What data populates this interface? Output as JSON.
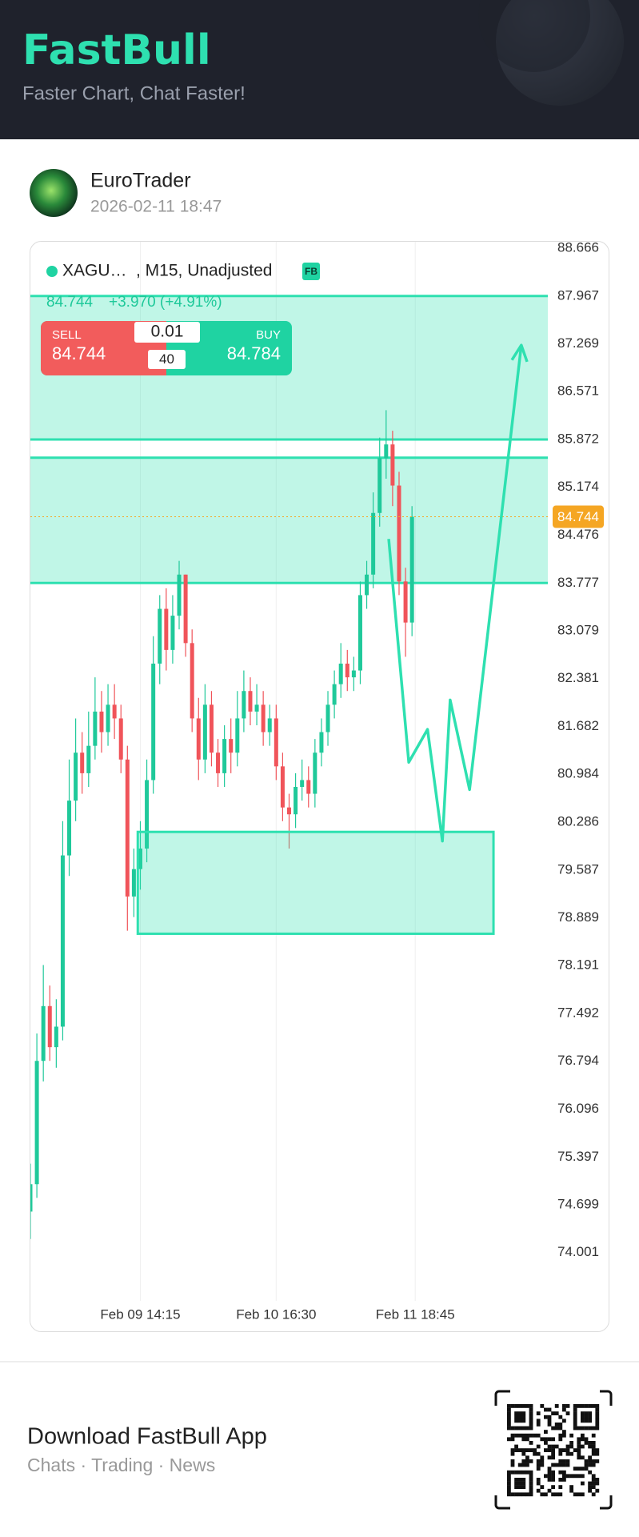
{
  "header": {
    "title": "FastBull",
    "subtitle": "Faster Chart, Chat Faster!"
  },
  "post": {
    "author": "EuroTrader",
    "timestamp": "2026-02-11 18:47"
  },
  "chart": {
    "type": "candlestick",
    "symbol": "XAGU…",
    "info": ", M15, Unadjusted",
    "badge": "FB",
    "quote": {
      "last": "84.744",
      "change": "+3.970 (+4.91%)",
      "sell_label": "SELL",
      "sell": "84.744",
      "buy_label": "BUY",
      "buy": "84.784",
      "lot": "0.01",
      "spread": "40"
    },
    "up_color": "#1fc99a",
    "down_color": "#f0545a",
    "open": [
      74.6,
      75.0,
      76.8,
      77.6,
      77.0,
      77.3,
      79.8,
      80.6,
      81.3,
      81.0,
      81.4,
      81.9,
      81.6,
      82.0,
      81.8,
      81.2,
      79.2,
      79.6,
      79.9,
      80.9,
      82.6,
      83.4,
      82.8,
      83.3,
      83.9,
      82.9,
      81.8,
      81.2,
      82.0,
      81.3,
      81.0,
      81.5,
      81.3,
      81.8,
      82.2,
      81.9,
      82.0,
      81.6,
      81.8,
      81.1,
      80.5,
      80.4,
      80.8,
      80.9,
      80.7,
      81.3,
      81.6,
      82.0,
      82.3,
      82.6,
      82.4,
      82.5,
      83.6,
      83.9,
      84.8,
      85.6,
      85.8,
      85.2,
      83.8,
      83.2
    ],
    "high": [
      75.3,
      77.2,
      78.2,
      77.9,
      77.7,
      80.3,
      81.2,
      81.8,
      81.6,
      81.9,
      82.4,
      82.2,
      82.3,
      82.3,
      82.0,
      81.4,
      79.9,
      80.3,
      81.2,
      83.0,
      83.6,
      83.7,
      83.6,
      84.1,
      83.9,
      83.1,
      82.1,
      82.3,
      82.2,
      81.5,
      81.7,
      81.8,
      82.2,
      82.5,
      82.4,
      82.3,
      82.2,
      82.0,
      82.0,
      81.3,
      80.7,
      81.0,
      81.2,
      81.1,
      81.5,
      81.8,
      82.2,
      82.5,
      82.9,
      82.8,
      82.7,
      83.8,
      84.1,
      85.1,
      85.9,
      86.3,
      86.0,
      85.4,
      84.0,
      84.9
    ],
    "low": [
      74.2,
      74.8,
      76.5,
      76.8,
      76.7,
      77.1,
      79.5,
      80.3,
      80.7,
      80.8,
      81.2,
      81.3,
      81.4,
      81.5,
      81.0,
      78.7,
      78.9,
      79.3,
      79.7,
      80.7,
      82.3,
      82.5,
      82.6,
      83.1,
      82.7,
      81.6,
      80.9,
      81.0,
      81.1,
      80.8,
      80.8,
      81.0,
      81.1,
      81.6,
      81.7,
      81.7,
      81.4,
      81.4,
      80.9,
      80.3,
      79.9,
      80.2,
      80.6,
      80.5,
      80.5,
      81.1,
      81.4,
      81.8,
      82.1,
      82.2,
      82.2,
      82.3,
      83.4,
      83.7,
      84.6,
      85.3,
      84.9,
      83.6,
      82.7,
      83.0
    ],
    "close": [
      75.0,
      76.8,
      77.6,
      77.0,
      77.3,
      79.8,
      80.6,
      81.3,
      81.0,
      81.4,
      81.9,
      81.6,
      82.0,
      81.8,
      81.2,
      79.2,
      79.6,
      79.9,
      80.9,
      82.6,
      83.4,
      82.8,
      83.3,
      83.9,
      82.9,
      81.8,
      81.2,
      82.0,
      81.3,
      81.0,
      81.5,
      81.3,
      81.8,
      82.2,
      81.9,
      82.0,
      81.6,
      81.8,
      81.1,
      80.5,
      80.4,
      80.8,
      80.9,
      80.7,
      81.3,
      81.6,
      82.0,
      82.3,
      82.6,
      82.4,
      82.5,
      83.6,
      83.9,
      84.8,
      85.6,
      85.8,
      85.2,
      83.8,
      83.2,
      84.744
    ],
    "xlim": [
      0,
      80
    ],
    "xticks": [
      {
        "value": 17,
        "label": "Feb 09 14:15"
      },
      {
        "value": 38,
        "label": "Feb 10 16:30"
      },
      {
        "value": 59.5,
        "label": "Feb 11 18:45"
      }
    ],
    "ylim": [
      73.355,
      88.771
    ],
    "yticks": [
      88.666,
      87.967,
      87.269,
      86.571,
      85.872,
      85.174,
      84.476,
      83.777,
      83.079,
      82.381,
      81.682,
      80.984,
      80.286,
      79.587,
      78.889,
      78.191,
      77.492,
      76.794,
      76.096,
      75.397,
      74.699,
      74.001
    ],
    "grid": true,
    "zones": [
      {
        "top": 87.967,
        "bottom": 85.872
      },
      {
        "top": 85.606,
        "bottom": 83.777
      }
    ],
    "box": {
      "x": [
        16.6,
        71.6
      ],
      "y": [
        80.143,
        78.656
      ]
    },
    "arrow": {
      "x": [
        55.4,
        58.5,
        61.4,
        63.7,
        64.9,
        67.9,
        75.9
      ],
      "y": [
        84.42,
        81.16,
        81.64,
        80.01,
        82.07,
        80.76,
        87.25
      ]
    }
  },
  "footer": {
    "title": "Download FastBull App",
    "subtitle": "Chats · Trading · News"
  }
}
